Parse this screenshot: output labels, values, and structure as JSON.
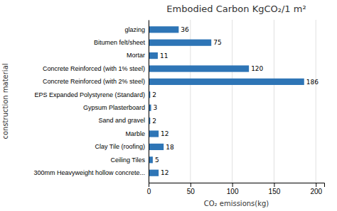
{
  "chart_data": {
    "type": "bar",
    "orientation": "horizontal",
    "title": "Embodied Carbon KgCO₂/1 m²",
    "x_label": "CO₂ emissions(kg)",
    "y_label": "construction material",
    "categories": [
      "glazing",
      "Bitumen felt/sheet",
      "Mortar",
      "Concrete Reinforced (with 1% steel)",
      "Concrete Reinforced (with 2% steel)",
      "EPS Expanded Polystyrene (Standard)",
      "Gypsum Plasterboard",
      "Sand and gravel",
      "Marble",
      "Clay Tile (roofing)",
      "Ceiling Tiles",
      "300mm Heavyweight hollow concrete..."
    ],
    "values": [
      36,
      75,
      11,
      120,
      186,
      2,
      3,
      2,
      12,
      18,
      5,
      12
    ],
    "color": "#2e75b6",
    "xlim": [
      0,
      210
    ],
    "xticks": [
      0,
      50,
      100,
      150,
      200
    ],
    "grid": true,
    "data_labels": true
  }
}
